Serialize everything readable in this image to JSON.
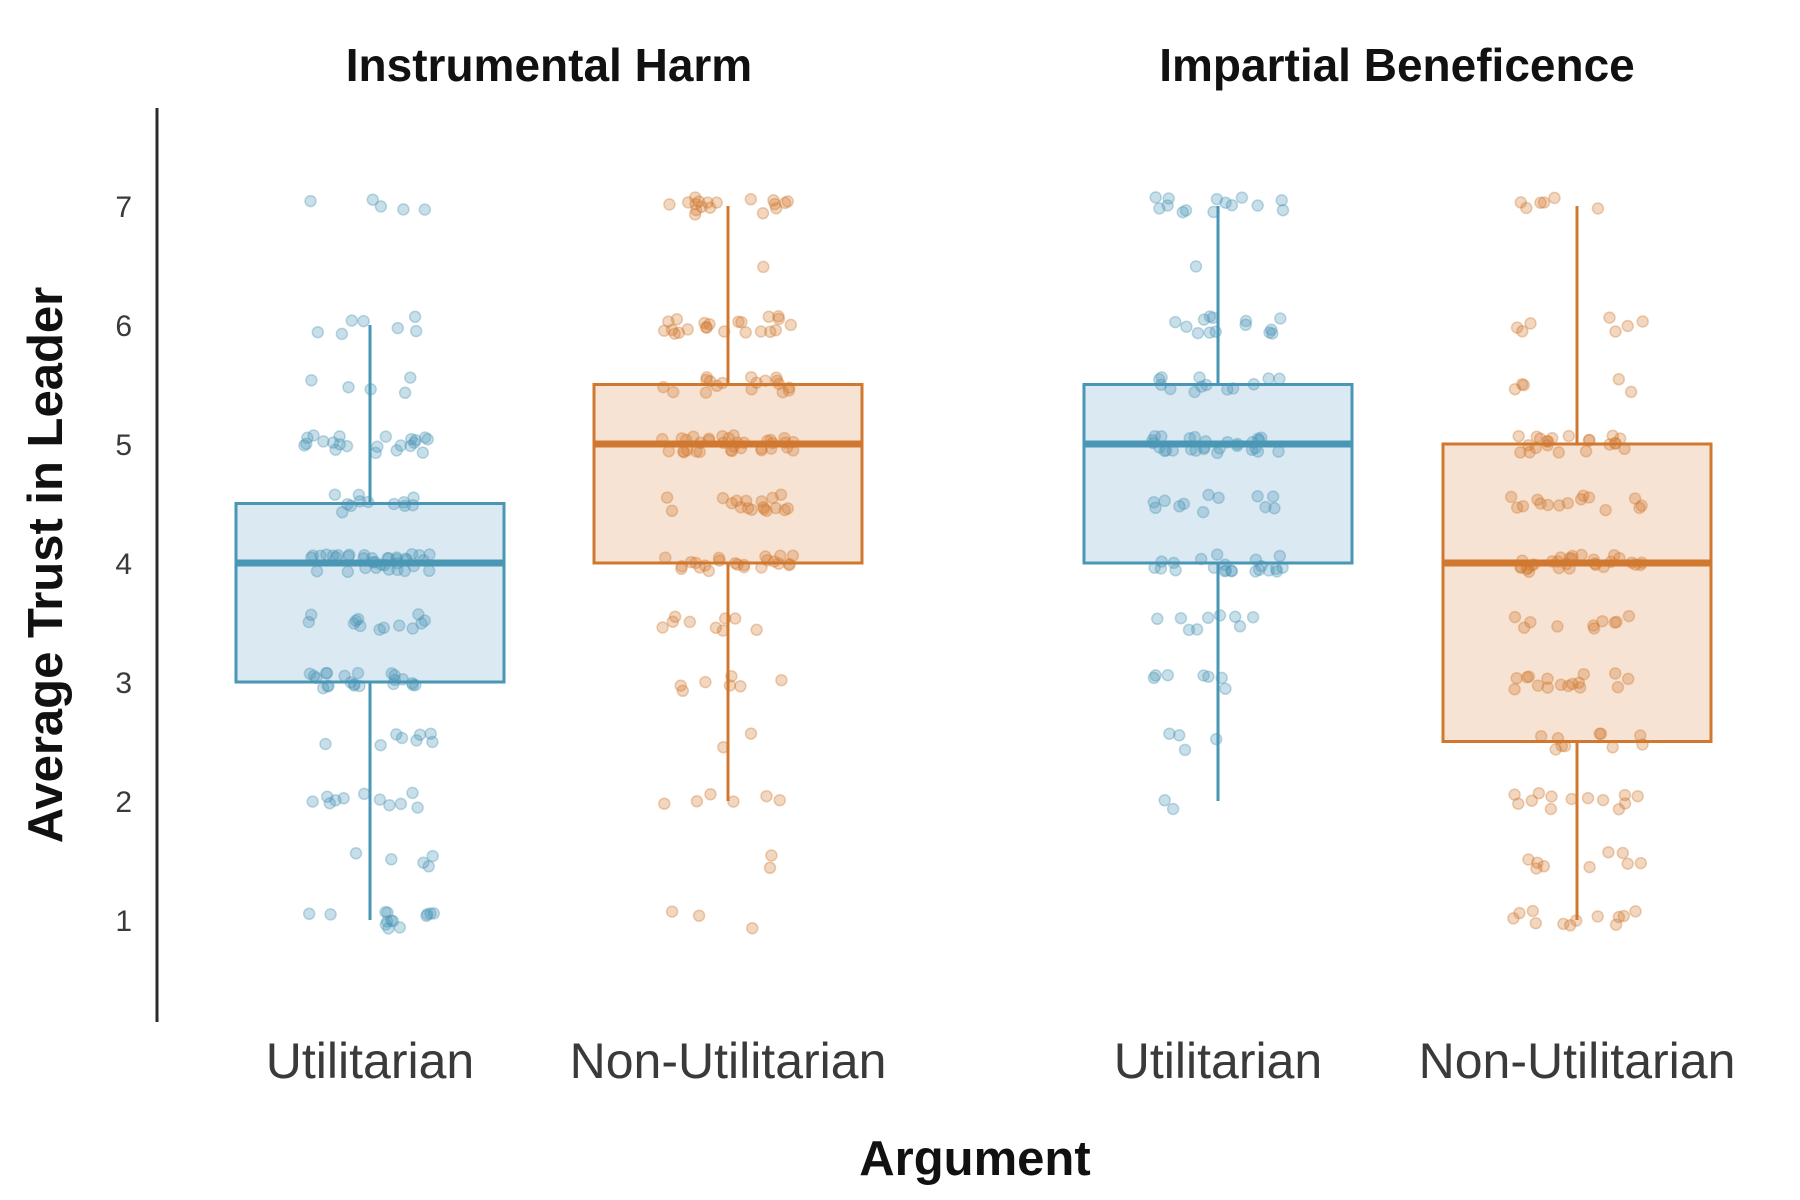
{
  "chart_data": {
    "type": "box",
    "xlabel": "Argument",
    "ylabel": "Average Trust in Leader",
    "ylim": [
      0.2,
      7.85
    ],
    "yticks": [
      1,
      2,
      3,
      4,
      5,
      6,
      7
    ],
    "grid": false,
    "legend": "none",
    "colors": {
      "Utilitarian": "#4a96b5",
      "Non-Utilitarian": "#d0782f"
    },
    "panels": [
      {
        "title": "Instrumental Harm",
        "groups": [
          {
            "category": "Utilitarian",
            "whisker_low": 1.0,
            "q1": 3.0,
            "median": 4.0,
            "q3": 4.5,
            "whisker_high": 6.0,
            "points": [
              7,
              7,
              7,
              7,
              7,
              6,
              6,
              6,
              6,
              6,
              6,
              6,
              5.5,
              5.5,
              5.5,
              5.5,
              5.5,
              5,
              5,
              5,
              5,
              5,
              5,
              5,
              5,
              5,
              5,
              5,
              5,
              5,
              5,
              5,
              5,
              5,
              5,
              5,
              5,
              5,
              5,
              4.5,
              4.5,
              4.5,
              4.5,
              4.5,
              4.5,
              4.5,
              4.5,
              4.5,
              4.5,
              4.5,
              4.5,
              4,
              4,
              4,
              4,
              4,
              4,
              4,
              4,
              4,
              4,
              4,
              4,
              4,
              4,
              4,
              4,
              4,
              4,
              4,
              4,
              4,
              4,
              4,
              4,
              4,
              4,
              4,
              4,
              4,
              4,
              4,
              4,
              4,
              4,
              4,
              4,
              3.5,
              3.5,
              3.5,
              3.5,
              3.5,
              3.5,
              3.5,
              3.5,
              3.5,
              3.5,
              3.5,
              3.5,
              3.5,
              3,
              3,
              3,
              3,
              3,
              3,
              3,
              3,
              3,
              3,
              3,
              3,
              3,
              3,
              3,
              3,
              3,
              3,
              3,
              3,
              3,
              3,
              2.5,
              2.5,
              2.5,
              2.5,
              2.5,
              2.5,
              2.5,
              2.5,
              2,
              2,
              2,
              2,
              2,
              2,
              2,
              2,
              2,
              2,
              2,
              1.5,
              1.5,
              1.5,
              1.5,
              1.5,
              1,
              1,
              1,
              1,
              1,
              1,
              1,
              1,
              1,
              1,
              1,
              1,
              1,
              1
            ]
          },
          {
            "category": "Non-Utilitarian",
            "whisker_low": 2.0,
            "q1": 4.0,
            "median": 5.0,
            "q3": 5.5,
            "whisker_high": 7.0,
            "points": [
              7,
              7,
              7,
              7,
              7,
              7,
              7,
              7,
              7,
              7,
              7,
              7,
              7,
              7,
              7,
              7,
              7,
              7,
              6.5,
              6,
              6,
              6,
              6,
              6,
              6,
              6,
              6,
              6,
              6,
              6,
              6,
              6,
              6,
              6,
              6,
              6,
              6,
              6,
              6,
              6,
              6,
              5.5,
              5.5,
              5.5,
              5.5,
              5.5,
              5.5,
              5.5,
              5.5,
              5.5,
              5.5,
              5.5,
              5.5,
              5.5,
              5.5,
              5.5,
              5.5,
              5.5,
              5.5,
              5,
              5,
              5,
              5,
              5,
              5,
              5,
              5,
              5,
              5,
              5,
              5,
              5,
              5,
              5,
              5,
              5,
              5,
              5,
              5,
              5,
              5,
              5,
              5,
              5,
              5,
              5,
              5,
              5,
              5,
              5,
              5,
              5,
              5,
              4.5,
              4.5,
              4.5,
              4.5,
              4.5,
              4.5,
              4.5,
              4.5,
              4.5,
              4.5,
              4.5,
              4.5,
              4.5,
              4.5,
              4.5,
              4.5,
              4.5,
              4.5,
              4,
              4,
              4,
              4,
              4,
              4,
              4,
              4,
              4,
              4,
              4,
              4,
              4,
              4,
              4,
              4,
              4,
              4,
              4,
              4,
              4,
              4,
              4,
              3.5,
              3.5,
              3.5,
              3.5,
              3.5,
              3.5,
              3.5,
              3.5,
              3.5,
              3,
              3,
              3,
              3,
              3,
              3,
              3,
              2.5,
              2.5,
              2,
              2,
              2,
              2,
              2,
              2,
              1.5,
              1.5,
              1,
              1,
              1
            ]
          }
        ]
      },
      {
        "title": "Impartial Beneficence",
        "groups": [
          {
            "category": "Utilitarian",
            "whisker_low": 2.0,
            "q1": 4.0,
            "median": 5.0,
            "q3": 5.5,
            "whisker_high": 7.0,
            "points": [
              7,
              7,
              7,
              7,
              7,
              7,
              7,
              7,
              7,
              7,
              7,
              7,
              7,
              7,
              6.5,
              6,
              6,
              6,
              6,
              6,
              6,
              6,
              6,
              6,
              6,
              6,
              6,
              6,
              6,
              5.5,
              5.5,
              5.5,
              5.5,
              5.5,
              5.5,
              5.5,
              5.5,
              5.5,
              5.5,
              5.5,
              5.5,
              5.5,
              5,
              5,
              5,
              5,
              5,
              5,
              5,
              5,
              5,
              5,
              5,
              5,
              5,
              5,
              5,
              5,
              5,
              5,
              5,
              5,
              5,
              5,
              5,
              5,
              5,
              5,
              5,
              5,
              4.5,
              4.5,
              4.5,
              4.5,
              4.5,
              4.5,
              4.5,
              4.5,
              4.5,
              4.5,
              4.5,
              4.5,
              4,
              4,
              4,
              4,
              4,
              4,
              4,
              4,
              4,
              4,
              4,
              4,
              4,
              4,
              4,
              4,
              4,
              4,
              4,
              4,
              4,
              4,
              3.5,
              3.5,
              3.5,
              3.5,
              3.5,
              3.5,
              3.5,
              3.5,
              3.5,
              3,
              3,
              3,
              3,
              3,
              3,
              3,
              2.5,
              2.5,
              2.5,
              2.5,
              2,
              2
            ]
          },
          {
            "category": "Non-Utilitarian",
            "whisker_low": 1.0,
            "q1": 2.5,
            "median": 4.0,
            "q3": 5.0,
            "whisker_high": 7.0,
            "points": [
              7,
              7,
              7,
              7,
              7,
              7,
              6,
              6,
              6,
              6,
              6,
              6,
              6,
              5.5,
              5.5,
              5.5,
              5.5,
              5.5,
              5,
              5,
              5,
              5,
              5,
              5,
              5,
              5,
              5,
              5,
              5,
              5,
              5,
              5,
              5,
              5,
              5,
              5,
              5,
              5,
              5,
              5,
              4.5,
              4.5,
              4.5,
              4.5,
              4.5,
              4.5,
              4.5,
              4.5,
              4.5,
              4.5,
              4.5,
              4.5,
              4.5,
              4.5,
              4.5,
              4,
              4,
              4,
              4,
              4,
              4,
              4,
              4,
              4,
              4,
              4,
              4,
              4,
              4,
              4,
              4,
              4,
              4,
              4,
              4,
              4,
              4,
              4,
              4,
              4,
              4,
              4,
              4,
              4,
              3.5,
              3.5,
              3.5,
              3.5,
              3.5,
              3.5,
              3.5,
              3.5,
              3.5,
              3.5,
              3,
              3,
              3,
              3,
              3,
              3,
              3,
              3,
              3,
              3,
              3,
              3,
              3,
              3,
              3,
              3,
              2.5,
              2.5,
              2.5,
              2.5,
              2.5,
              2.5,
              2.5,
              2.5,
              2.5,
              2.5,
              2,
              2,
              2,
              2,
              2,
              2,
              2,
              2,
              2,
              2,
              2,
              2,
              2,
              1.5,
              1.5,
              1.5,
              1.5,
              1.5,
              1.5,
              1.5,
              1.5,
              1.5,
              1,
              1,
              1,
              1,
              1,
              1,
              1,
              1,
              1,
              1,
              1,
              1
            ]
          }
        ]
      }
    ]
  }
}
